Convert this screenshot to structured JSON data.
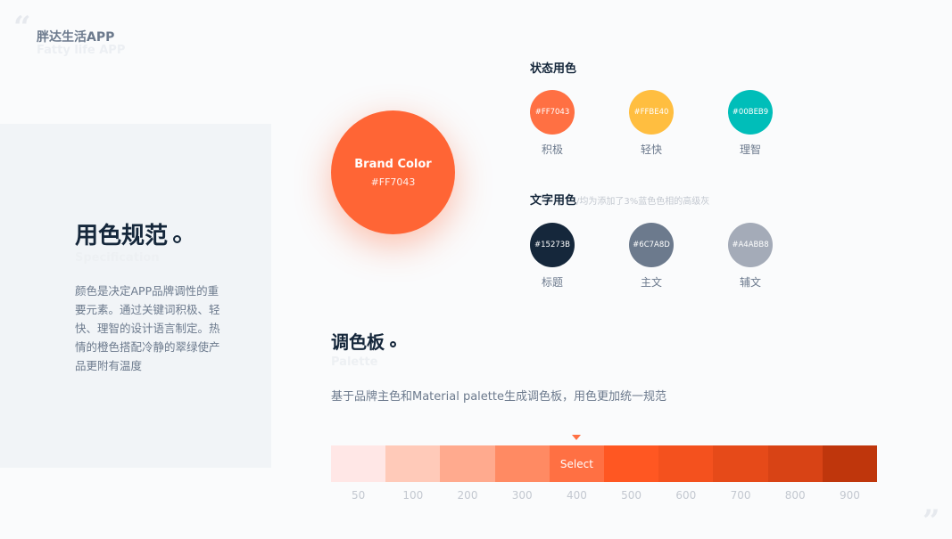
{
  "header": {
    "title": "胖达生活APP",
    "subtitle": "Fatty life APP"
  },
  "intro": {
    "title": "用色规范",
    "subtitle": "Specification",
    "description": "颜色是决定APP品牌调性的重要元素。通过关键词积极、轻快、理智的设计语言制定。热情的橙色搭配冷静的翠绿使产品更附有温度"
  },
  "brand": {
    "label": "Brand Color",
    "hex": "#FF7043"
  },
  "status": {
    "title": "状态用色",
    "items": [
      {
        "hex": "#FF7043",
        "label": "积极"
      },
      {
        "hex": "#FFBE40",
        "label": "轻快"
      },
      {
        "hex": "#00BEB9",
        "label": "理智"
      }
    ]
  },
  "text_colors": {
    "title": "文字用色",
    "note": "/均为添加了3%蓝色色相的高级灰",
    "items": [
      {
        "hex": "#15273B",
        "label": "标题"
      },
      {
        "hex": "#6C7A8D",
        "label": "主文"
      },
      {
        "hex": "#A4ABB8",
        "label": "辅文"
      }
    ]
  },
  "palette": {
    "title": "调色板",
    "subtitle": "Palette",
    "description": "基于品牌主色和Material palette生成调色板，用色更加统一规范",
    "selected_label": "Select",
    "selected_index": 4,
    "shades": [
      {
        "name": "50",
        "hex": "#FFE7E6"
      },
      {
        "name": "100",
        "hex": "#FFCAB9"
      },
      {
        "name": "200",
        "hex": "#FFAA8E"
      },
      {
        "name": "300",
        "hex": "#FF8A63"
      },
      {
        "name": "400",
        "hex": "#FF7043"
      },
      {
        "name": "500",
        "hex": "#FF5722"
      },
      {
        "name": "600",
        "hex": "#F4511E"
      },
      {
        "name": "700",
        "hex": "#E64A19"
      },
      {
        "name": "800",
        "hex": "#D84315"
      },
      {
        "name": "900",
        "hex": "#BF360C"
      }
    ]
  }
}
